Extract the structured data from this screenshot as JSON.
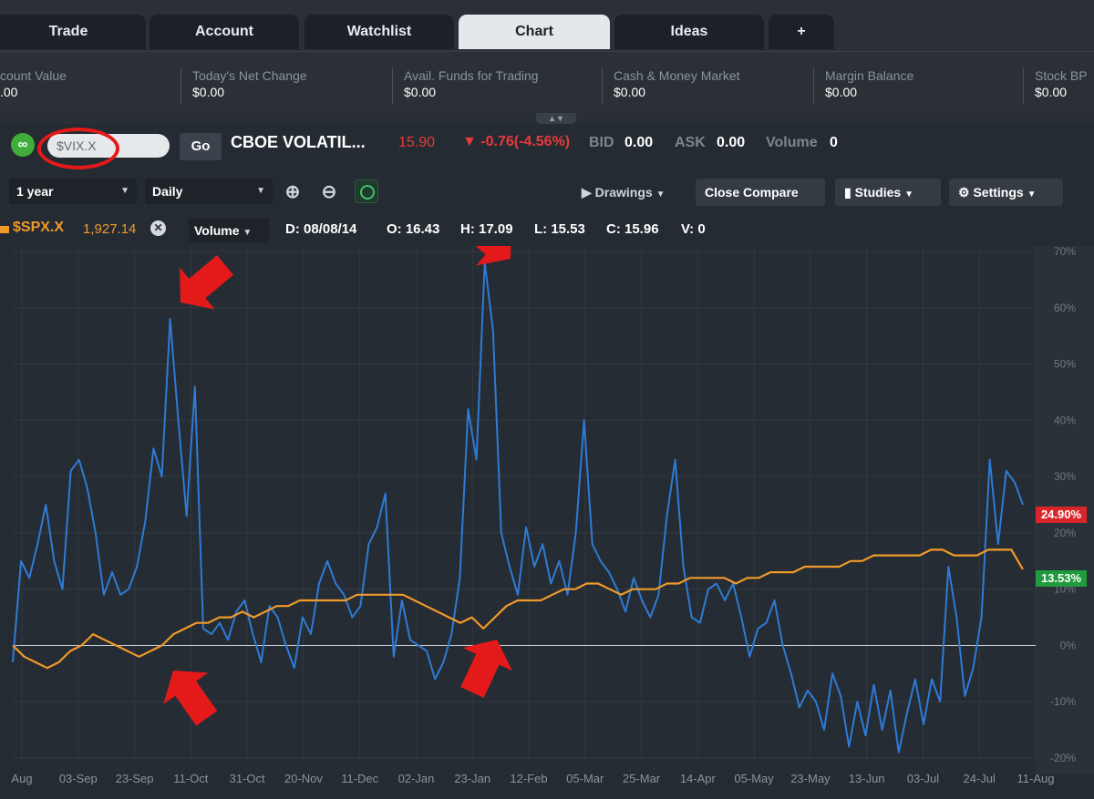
{
  "tabs": [
    {
      "label": "Trade"
    },
    {
      "label": "Account"
    },
    {
      "label": "Watchlist"
    },
    {
      "label": "Chart",
      "active": true
    },
    {
      "label": "Ideas"
    },
    {
      "label": "+"
    }
  ],
  "account": [
    {
      "label": "count Value",
      "value": ".00"
    },
    {
      "label": "Today's Net Change",
      "value": "$0.00"
    },
    {
      "label": "Avail. Funds for Trading",
      "value": "$0.00"
    },
    {
      "label": "Cash & Money Market",
      "value": "$0.00"
    },
    {
      "label": "Margin Balance",
      "value": "$0.00"
    },
    {
      "label": "Stock BP",
      "value": "$0.00"
    }
  ],
  "symbol_bar": {
    "symbol_value": "$VIX.X",
    "go_label": "Go",
    "name": "CBOE VOLATIL...",
    "last": "15.90",
    "change": "-0.76(-4.56%)",
    "bid_label": "BID",
    "bid": "0.00",
    "ask_label": "ASK",
    "ask": "0.00",
    "volume_label": "Volume",
    "volume": "0"
  },
  "toolbar": {
    "range": "1 year",
    "interval": "Daily",
    "drawings": "Drawings",
    "close_compare": "Close Compare",
    "studies": "Studies",
    "settings": "Settings"
  },
  "info": {
    "compare_symbol": "$SPX.X",
    "compare_value": "1,927.14",
    "volume_dd": "Volume",
    "date": "D: 08/08/14",
    "open": "O: 16.43",
    "high": "H: 17.09",
    "low": "L: 15.53",
    "close": "C: 15.96",
    "vol": "V: 0"
  },
  "badges": {
    "vix": "24.90%",
    "spx": "13.53%"
  },
  "colors": {
    "vix_line": "#2e7bd6",
    "spx_line": "#f09a2a",
    "badge_red": "#d9262a",
    "badge_green": "#1f9a3c",
    "annotation_red": "#e41a1a"
  },
  "chart_data": {
    "type": "line",
    "x_labels": [
      "Aug",
      "03-Sep",
      "23-Sep",
      "11-Oct",
      "31-Oct",
      "20-Nov",
      "11-Dec",
      "02-Jan",
      "23-Jan",
      "12-Feb",
      "05-Mar",
      "25-Mar",
      "14-Apr",
      "05-May",
      "23-May",
      "13-Jun",
      "03-Jul",
      "24-Jul",
      "11-Aug"
    ],
    "y_ticks": [
      "70%",
      "60%",
      "50%",
      "40%",
      "30%",
      "20%",
      "10%",
      "0%",
      "-10%",
      "-20%"
    ],
    "ylim": [
      -20,
      70
    ],
    "series": [
      {
        "name": "$VIX.X",
        "values": [
          -3,
          15,
          12,
          18,
          25,
          15,
          10,
          31,
          33,
          28,
          20,
          9,
          13,
          9,
          10,
          14,
          22,
          35,
          30,
          58,
          40,
          23,
          46,
          3,
          2,
          4,
          1,
          6,
          8,
          2,
          -3,
          7,
          5,
          0,
          -4,
          5,
          2,
          11,
          15,
          11,
          9,
          5,
          7,
          18,
          21,
          27,
          -2,
          8,
          1,
          0,
          -1,
          -6,
          -3,
          2,
          12,
          42,
          33,
          68,
          56,
          20,
          14,
          9,
          21,
          14,
          18,
          11,
          15,
          9,
          20,
          40,
          18,
          15,
          13,
          10,
          6,
          12,
          8,
          5,
          9,
          23,
          33,
          14,
          5,
          4,
          10,
          11,
          8,
          11,
          5,
          -2,
          3,
          4,
          8,
          0,
          -5,
          -11,
          -8,
          -10,
          -15,
          -5,
          -9,
          -18,
          -10,
          -16,
          -7,
          -15,
          -8,
          -19,
          -12,
          -6,
          -14,
          -6,
          -10,
          14,
          5,
          -9,
          -4,
          5,
          33,
          18,
          31,
          29,
          25
        ],
        "color": "#2e7bd6"
      },
      {
        "name": "$SPX.X",
        "values": [
          0,
          -2,
          -3,
          -4,
          -3,
          -1,
          0,
          2,
          1,
          0,
          -1,
          -2,
          -1,
          0,
          2,
          3,
          4,
          4,
          5,
          5,
          6,
          5,
          6,
          7,
          7,
          8,
          8,
          8,
          8,
          8,
          9,
          9,
          9,
          9,
          9,
          8,
          7,
          6,
          5,
          4,
          5,
          3,
          5,
          7,
          8,
          8,
          8,
          9,
          10,
          10,
          11,
          11,
          10,
          9,
          10,
          10,
          10,
          11,
          11,
          12,
          12,
          12,
          12,
          11,
          12,
          12,
          13,
          13,
          13,
          14,
          14,
          14,
          14,
          15,
          15,
          16,
          16,
          16,
          16,
          16,
          17,
          17,
          16,
          16,
          16,
          17,
          17,
          17,
          13.53
        ],
        "color": "#f09a2a"
      }
    ],
    "grid": true
  }
}
